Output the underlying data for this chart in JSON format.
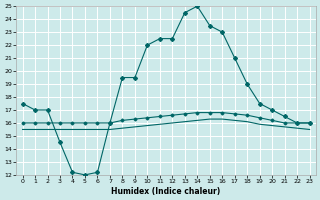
{
  "xlabel": "Humidex (Indice chaleur)",
  "ylabel": "",
  "background_color": "#cdeaea",
  "grid_color": "#ffffff",
  "line_color": "#006666",
  "xlim": [
    -0.5,
    23.5
  ],
  "ylim": [
    12,
    25
  ],
  "xticks": [
    0,
    1,
    2,
    3,
    4,
    5,
    6,
    7,
    8,
    9,
    10,
    11,
    12,
    13,
    14,
    15,
    16,
    17,
    18,
    19,
    20,
    21,
    22,
    23
  ],
  "yticks": [
    12,
    13,
    14,
    15,
    16,
    17,
    18,
    19,
    20,
    21,
    22,
    23,
    24,
    25
  ],
  "curve1_x": [
    0,
    1,
    2,
    3,
    4,
    5,
    6,
    7,
    8,
    9,
    10,
    11,
    12,
    13,
    14,
    15,
    16,
    17,
    18,
    19,
    20,
    21,
    22,
    23
  ],
  "curve1_y": [
    17.5,
    17.0,
    17.0,
    14.5,
    12.2,
    12.0,
    12.2,
    16.0,
    19.5,
    19.5,
    22.0,
    22.5,
    22.5,
    24.5,
    25.0,
    23.5,
    23.0,
    21.0,
    19.0,
    17.5,
    17.0,
    16.5,
    16.0,
    16.0
  ],
  "curve2_x": [
    0,
    1,
    2,
    3,
    4,
    5,
    6,
    7,
    8,
    9,
    10,
    11,
    12,
    13,
    14,
    15,
    16,
    17,
    18,
    19,
    20,
    21,
    22,
    23
  ],
  "curve2_y": [
    16.0,
    16.0,
    16.0,
    16.0,
    16.0,
    16.0,
    16.0,
    16.0,
    16.2,
    16.3,
    16.4,
    16.5,
    16.6,
    16.7,
    16.8,
    16.8,
    16.8,
    16.7,
    16.6,
    16.4,
    16.2,
    16.0,
    16.0,
    16.0
  ],
  "curve3_x": [
    0,
    1,
    2,
    3,
    4,
    5,
    6,
    7,
    8,
    9,
    10,
    11,
    12,
    13,
    14,
    15,
    16,
    17,
    18,
    19,
    20,
    21,
    22,
    23
  ],
  "curve3_y": [
    15.5,
    15.5,
    15.5,
    15.5,
    15.5,
    15.5,
    15.5,
    15.5,
    15.6,
    15.7,
    15.8,
    15.9,
    16.0,
    16.1,
    16.2,
    16.3,
    16.3,
    16.2,
    16.1,
    15.9,
    15.8,
    15.7,
    15.6,
    15.5
  ]
}
